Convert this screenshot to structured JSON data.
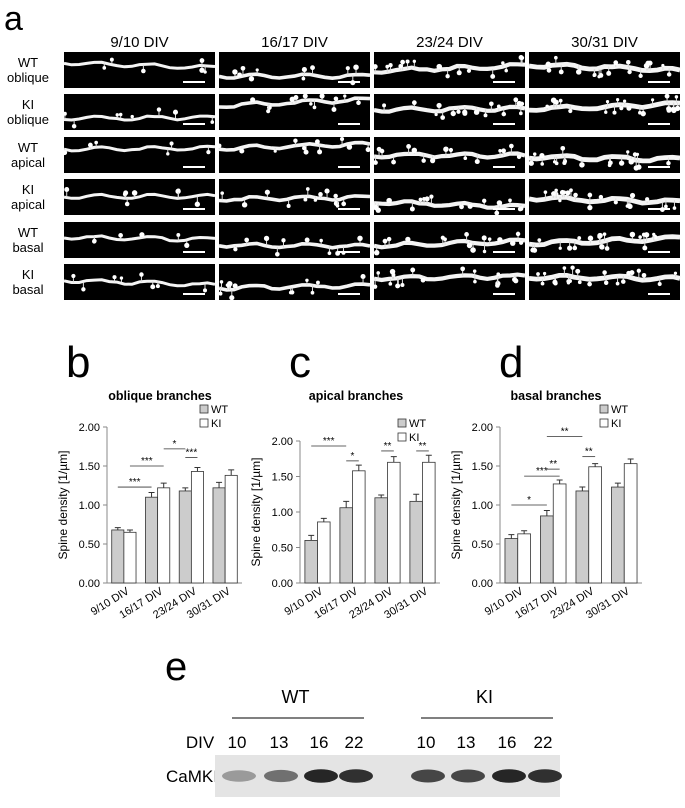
{
  "panel_a": {
    "label": "a",
    "columns": [
      "9/10 DIV",
      "16/17 DIV",
      "23/24 DIV",
      "30/31 DIV"
    ],
    "rows": [
      [
        "WT",
        "oblique"
      ],
      [
        "KI",
        "oblique"
      ],
      [
        "WT",
        "apical"
      ],
      [
        "KI",
        "apical"
      ],
      [
        "WT",
        "basal"
      ],
      [
        "KI",
        "basal"
      ]
    ]
  },
  "chart_data": [
    {
      "type": "bar",
      "label": "b",
      "title": "oblique branches",
      "y_label": "Spine density [1/µm]",
      "categories": [
        "9/10 DIV",
        "16/17 DIV",
        "23/24 DIV",
        "30/31 DIV"
      ],
      "series": [
        {
          "name": "WT",
          "color": "#cccccc",
          "values": [
            0.68,
            1.1,
            1.18,
            1.22
          ],
          "errors": [
            0.03,
            0.06,
            0.04,
            0.07
          ]
        },
        {
          "name": "KI",
          "color": "#ffffff",
          "values": [
            0.65,
            1.22,
            1.43,
            1.38
          ],
          "errors": [
            0.03,
            0.06,
            0.05,
            0.07
          ]
        }
      ],
      "ylim": [
        0,
        2
      ],
      "yticks": [
        {
          "value": 0,
          "label": "0.00"
        },
        {
          "value": 0.5,
          "label": "0.50"
        },
        {
          "value": 1,
          "label": "1.00"
        },
        {
          "value": 1.5,
          "label": "1.50"
        },
        {
          "value": 2,
          "label": "2.00"
        }
      ],
      "legend": "upper right",
      "annotations": [
        {
          "label": "***"
        },
        {
          "label": "***"
        },
        {
          "label": "*"
        },
        {
          "label": "***"
        }
      ]
    },
    {
      "type": "bar",
      "label": "c",
      "title": "apical branches",
      "y_label": "Spine density [1/µm]",
      "categories": [
        "9/10 DIV",
        "16/17 DIV",
        "23/24 DIV",
        "30/31 DIV"
      ],
      "series": [
        {
          "name": "WT",
          "color": "#cccccc",
          "values": [
            0.6,
            1.06,
            1.2,
            1.15
          ],
          "errors": [
            0.07,
            0.09,
            0.04,
            0.1
          ]
        },
        {
          "name": "KI",
          "color": "#ffffff",
          "values": [
            0.86,
            1.58,
            1.7,
            1.7
          ],
          "errors": [
            0.05,
            0.08,
            0.08,
            0.1
          ]
        }
      ],
      "ylim": [
        0,
        2
      ],
      "yticks": [
        {
          "value": 0,
          "label": "0.00"
        },
        {
          "value": 0.5,
          "label": "0.50"
        },
        {
          "value": 1,
          "label": "1.00"
        },
        {
          "value": 1.5,
          "label": "1.50"
        },
        {
          "value": 2,
          "label": "2.00"
        }
      ],
      "legend": "upper right",
      "annotations": [
        {
          "label": "***"
        },
        {
          "label": "*"
        },
        {
          "label": "**"
        },
        {
          "label": "**"
        }
      ]
    },
    {
      "type": "bar",
      "label": "d",
      "title": "basal branches",
      "y_label": "Spine density [1/µm]",
      "categories": [
        "9/10 DIV",
        "16/17 DIV",
        "23/24 DIV",
        "30/31 DIV"
      ],
      "series": [
        {
          "name": "WT",
          "color": "#cccccc",
          "values": [
            0.57,
            0.86,
            1.18,
            1.23
          ],
          "errors": [
            0.05,
            0.07,
            0.05,
            0.05
          ]
        },
        {
          "name": "KI",
          "color": "#ffffff",
          "values": [
            0.63,
            1.27,
            1.49,
            1.53
          ],
          "errors": [
            0.04,
            0.05,
            0.04,
            0.06
          ]
        }
      ],
      "ylim": [
        0,
        2
      ],
      "yticks": [
        {
          "value": 0,
          "label": "0.00"
        },
        {
          "value": 0.5,
          "label": "0.50"
        },
        {
          "value": 1,
          "label": "1.00"
        },
        {
          "value": 1.5,
          "label": "1.50"
        },
        {
          "value": 2,
          "label": "2.00"
        }
      ],
      "legend": "upper right",
      "annotations": [
        {
          "label": "**"
        },
        {
          "label": "***"
        },
        {
          "label": "**"
        },
        {
          "label": "*"
        },
        {
          "label": "**"
        }
      ]
    }
  ],
  "panel_e": {
    "label": "e",
    "groups": [
      {
        "name": "WT",
        "lanes": [
          "10",
          "13",
          "16",
          "22"
        ]
      },
      {
        "name": "KI",
        "lanes": [
          "10",
          "13",
          "16",
          "22"
        ]
      }
    ],
    "lane_label": "DIV",
    "protein": "CaMKIIα"
  }
}
